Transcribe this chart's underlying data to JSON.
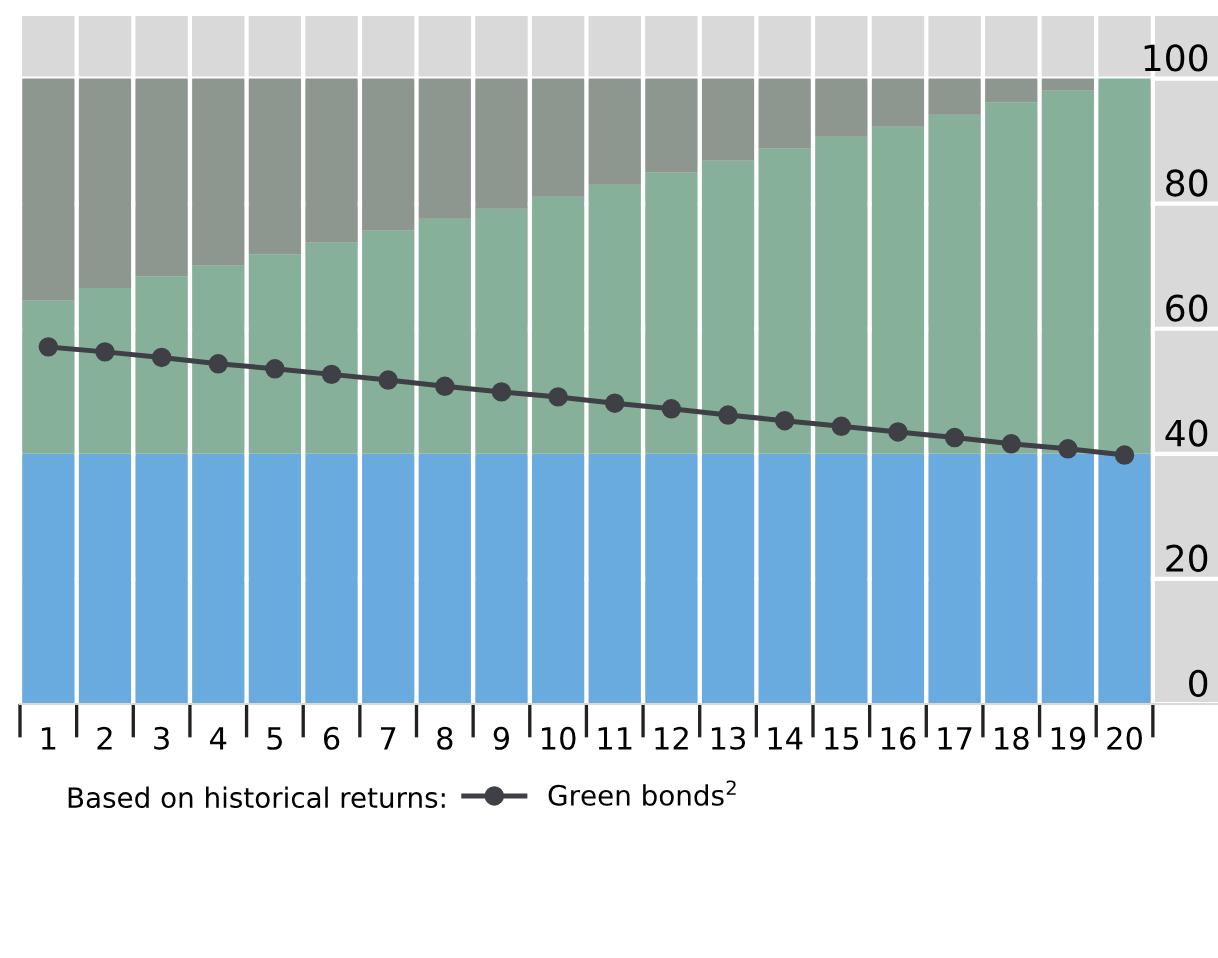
{
  "chart_data": {
    "type": "bar",
    "stacked": true,
    "categories": [
      "1",
      "2",
      "3",
      "4",
      "5",
      "6",
      "7",
      "8",
      "9",
      "10",
      "11",
      "12",
      "13",
      "14",
      "15",
      "16",
      "17",
      "18",
      "19",
      "20"
    ],
    "series": [
      {
        "color": "#6aabdf",
        "values": [
          40,
          40,
          40,
          40,
          40,
          40,
          40,
          40,
          40,
          40,
          40,
          40,
          40,
          40,
          40,
          40,
          40,
          40,
          40,
          40
        ]
      },
      {
        "color": "#87b09a",
        "values": [
          24.5,
          26.5,
          28.4,
          30.1,
          31.9,
          33.8,
          35.7,
          37.6,
          39.2,
          41.1,
          43,
          45,
          46.9,
          48.8,
          50.7,
          52.3,
          54.2,
          56.2,
          58.1,
          60
        ]
      },
      {
        "color": "#8e9690",
        "values": [
          35.5,
          33.5,
          31.6,
          29.9,
          28.1,
          26.2,
          24.3,
          22.4,
          20.8,
          18.9,
          17,
          15,
          13.1,
          11.2,
          9.3,
          7.7,
          5.8,
          3.8,
          1.9,
          0
        ]
      },
      {
        "type": "line",
        "name": "Green bonds$^{2}$",
        "color": "#3f3f46",
        "values": [
          57.1,
          56.3,
          55.4,
          54.4,
          53.6,
          52.7,
          51.8,
          50.8,
          49.9,
          49.1,
          48.1,
          47.2,
          46.2,
          45.3,
          44.4,
          43.5,
          42.6,
          41.6,
          40.8,
          39.8
        ]
      }
    ],
    "legend_title": "Based on historical returns:",
    "legend": "bottom",
    "marker": "circle",
    "line_style": "solid",
    "grid": true,
    "ylim": [
      0,
      110
    ],
    "yticks": [
      0,
      20,
      40,
      60,
      80,
      100
    ]
  }
}
